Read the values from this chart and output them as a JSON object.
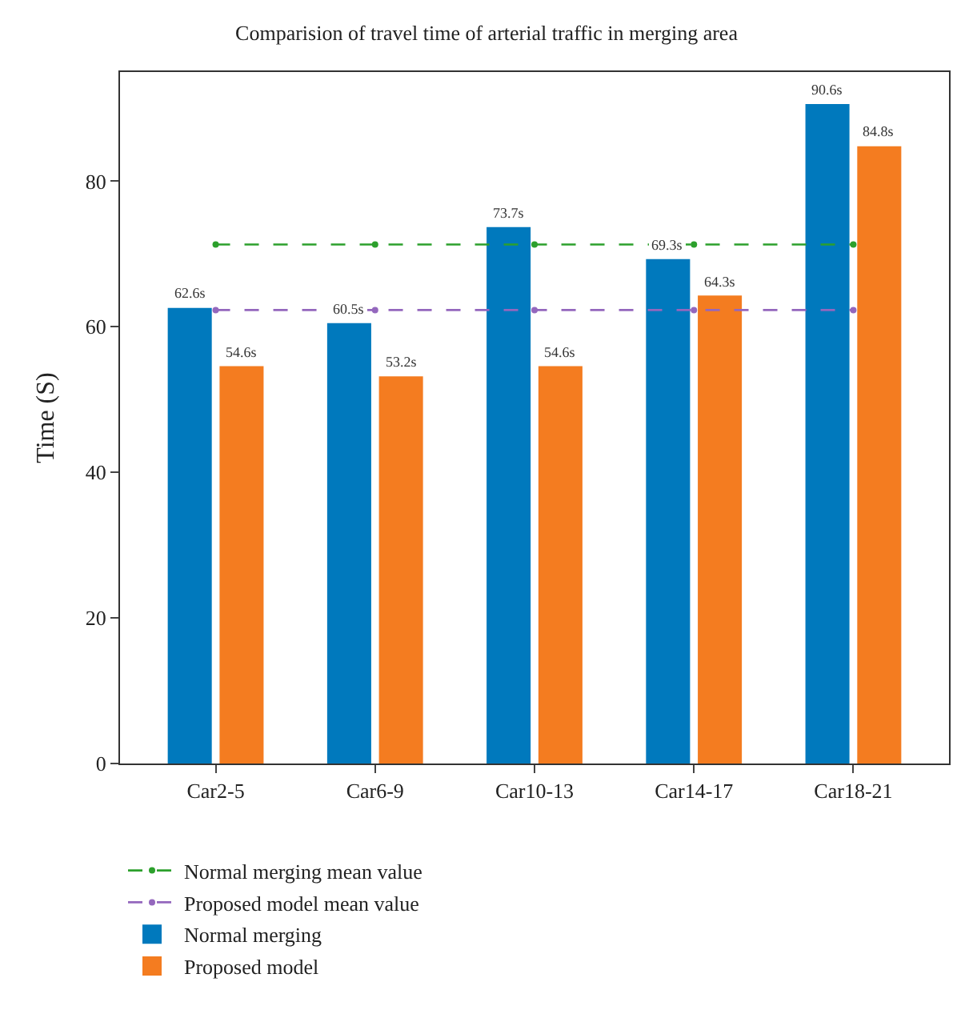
{
  "chart_data": {
    "type": "bar",
    "title": "Comparision of travel time of arterial traffic in merging area",
    "ylabel": "Time (S)",
    "categories": [
      "Car2-5",
      "Car6-9",
      "Car10-13",
      "Car14-17",
      "Car18-21"
    ],
    "series": [
      {
        "name": "Normal merging mean value",
        "type": "line",
        "color": "#2ca02c",
        "values": [
          71.3,
          71.3,
          71.3,
          71.3,
          71.3
        ],
        "line_style": "dashed",
        "marker": "circle"
      },
      {
        "name": "Proposed model mean value",
        "type": "line",
        "color": "#9467bd",
        "values": [
          62.3,
          62.3,
          62.3,
          62.3,
          62.3
        ],
        "line_style": "dashed",
        "marker": "circle"
      },
      {
        "name": "Normal merging",
        "color": "#0079bd",
        "values": [
          62.6,
          60.5,
          73.7,
          69.3,
          90.6
        ],
        "value_labels": [
          "62.6s",
          "60.5s",
          "73.7s",
          "69.3s",
          "90.6s"
        ]
      },
      {
        "name": "Proposed model",
        "color": "#f47c20",
        "values": [
          54.6,
          53.2,
          54.6,
          64.3,
          84.8
        ],
        "value_labels": [
          "54.6s",
          "53.2s",
          "54.6s",
          "64.3s",
          "84.8s"
        ]
      }
    ],
    "ylim": [
      0,
      95
    ],
    "yticks": [
      0,
      20,
      40,
      60,
      80
    ],
    "legend": "bottom"
  }
}
